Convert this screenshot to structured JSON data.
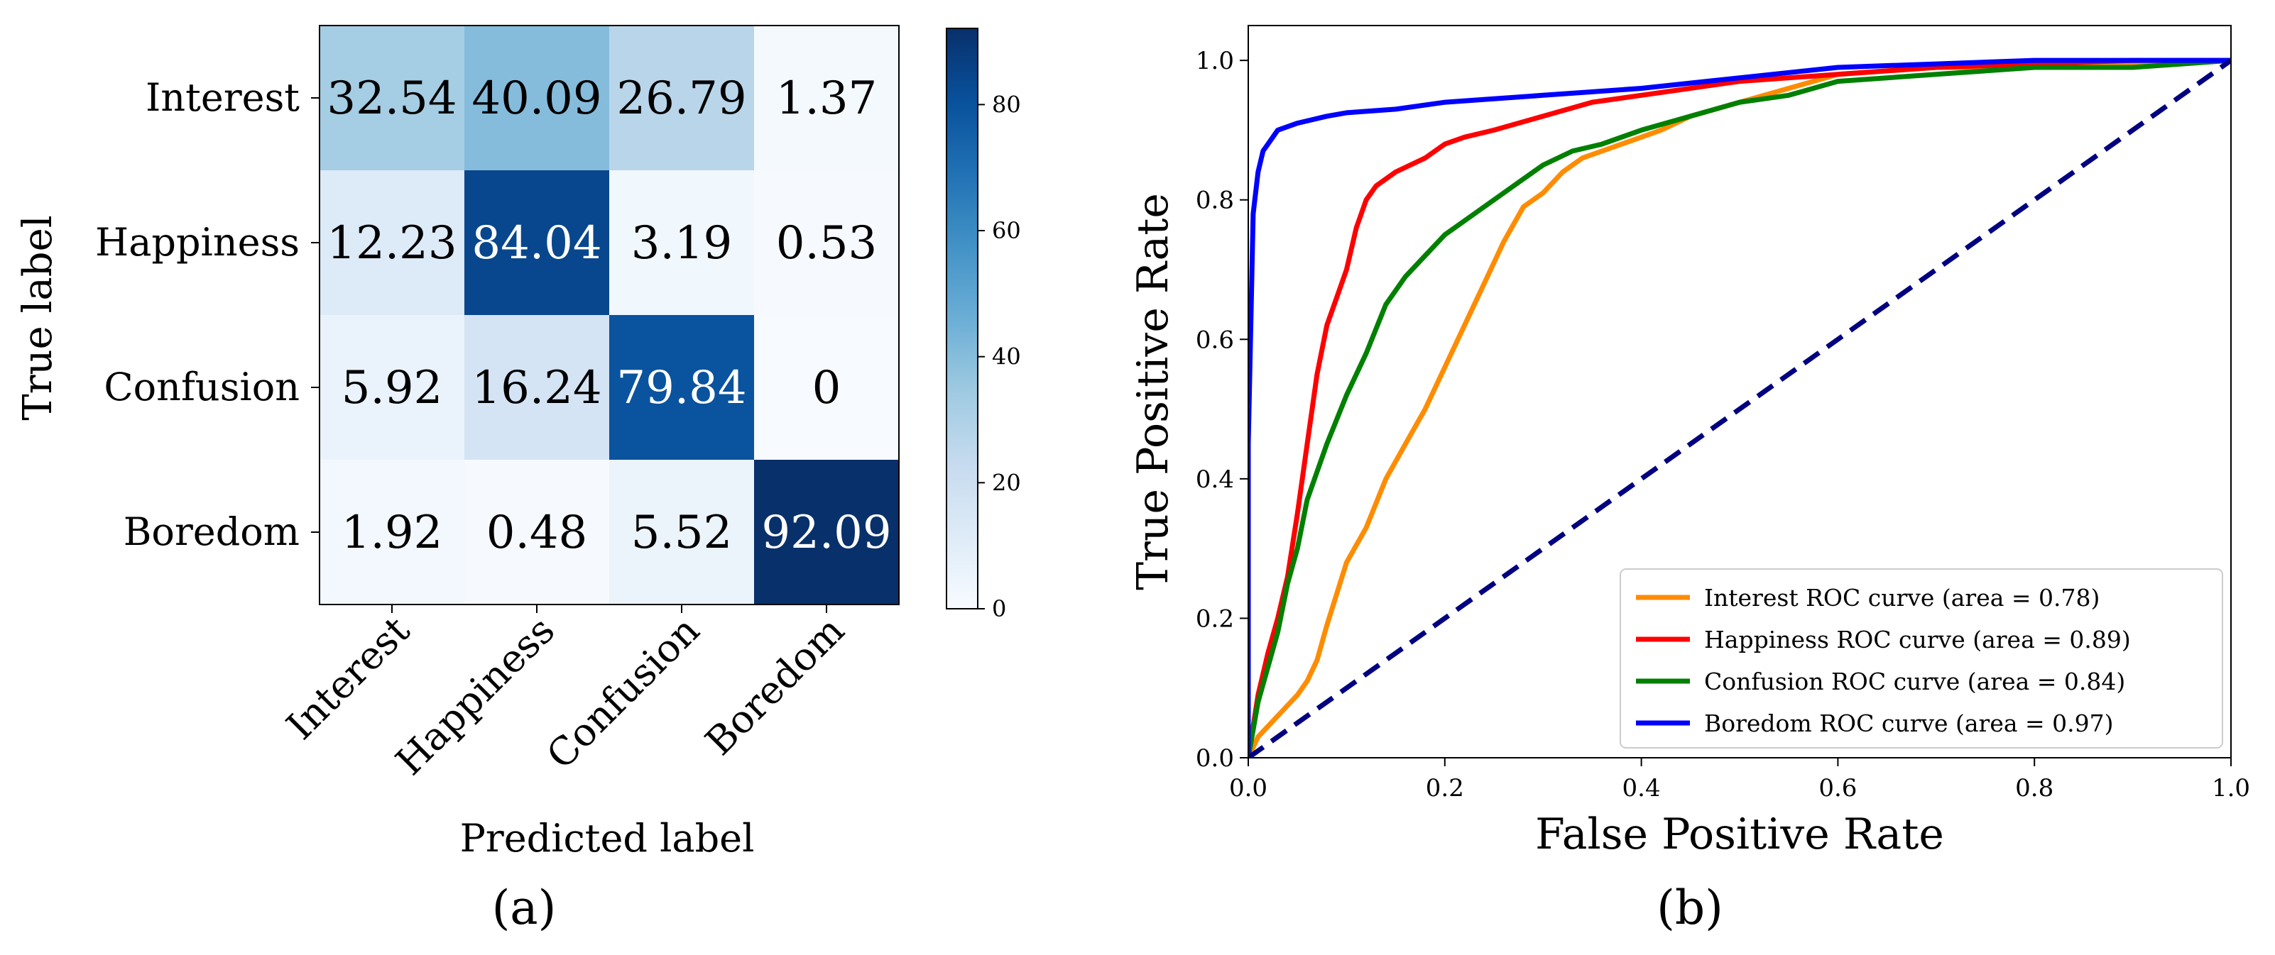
{
  "chart_data": [
    {
      "type": "heatmap",
      "panel_label": "(a)",
      "title": "",
      "xlabel": "Predicted label",
      "ylabel": "True label",
      "x_categories": [
        "Interest",
        "Happiness",
        "Confusion",
        "Boredom"
      ],
      "y_categories": [
        "Interest",
        "Happiness",
        "Confusion",
        "Boredom"
      ],
      "values": [
        [
          32.54,
          40.09,
          26.79,
          1.37
        ],
        [
          12.23,
          84.04,
          3.19,
          0.53
        ],
        [
          5.92,
          16.24,
          79.84,
          0
        ],
        [
          1.92,
          0.48,
          5.52,
          92.09
        ]
      ],
      "value_labels": [
        [
          "32.54",
          "40.09",
          "26.79",
          "1.37"
        ],
        [
          "12.23",
          "84.04",
          "3.19",
          "0.53"
        ],
        [
          "5.92",
          "16.24",
          "79.84",
          "0"
        ],
        [
          "1.92",
          "0.48",
          "5.52",
          "92.09"
        ]
      ],
      "colorbar": {
        "range": [
          0,
          92.09
        ],
        "ticks": [
          0,
          20,
          40,
          60,
          80
        ],
        "tick_labels": [
          "0",
          "20",
          "40",
          "60",
          "80"
        ],
        "colormap": "Blues"
      }
    },
    {
      "type": "line",
      "panel_label": "(b)",
      "title": "",
      "xlabel": "False Positive Rate",
      "ylabel": "True Positive Rate",
      "xlim": [
        0.0,
        1.0
      ],
      "ylim": [
        0.0,
        1.05
      ],
      "x_ticks": [
        0.0,
        0.2,
        0.4,
        0.6,
        0.8,
        1.0
      ],
      "x_tick_labels": [
        "0.0",
        "0.2",
        "0.4",
        "0.6",
        "0.8",
        "1.0"
      ],
      "y_ticks": [
        0.0,
        0.2,
        0.4,
        0.6,
        0.8,
        1.0
      ],
      "y_tick_labels": [
        "0.0",
        "0.2",
        "0.4",
        "0.6",
        "0.8",
        "1.0"
      ],
      "legend_position": "lower-right",
      "series": [
        {
          "name": "Interest ROC curve (area = 0.78)",
          "color": "#ff8c00",
          "x": [
            0,
            0.01,
            0.03,
            0.05,
            0.06,
            0.07,
            0.08,
            0.1,
            0.12,
            0.14,
            0.16,
            0.18,
            0.2,
            0.22,
            0.24,
            0.26,
            0.28,
            0.3,
            0.32,
            0.34,
            0.36,
            0.38,
            0.4,
            0.42,
            0.45,
            0.5,
            0.55,
            0.6,
            0.7,
            0.8,
            0.9,
            0.95,
            1.0
          ],
          "y": [
            0,
            0.03,
            0.06,
            0.09,
            0.11,
            0.14,
            0.19,
            0.28,
            0.33,
            0.4,
            0.45,
            0.5,
            0.56,
            0.62,
            0.68,
            0.74,
            0.79,
            0.81,
            0.84,
            0.86,
            0.87,
            0.88,
            0.89,
            0.9,
            0.92,
            0.94,
            0.96,
            0.98,
            0.99,
            0.99,
            0.995,
            1.0,
            1.0
          ]
        },
        {
          "name": "Happiness ROC curve (area = 0.89)",
          "color": "#ff0000",
          "x": [
            0,
            0.01,
            0.02,
            0.03,
            0.04,
            0.05,
            0.06,
            0.07,
            0.08,
            0.09,
            0.1,
            0.11,
            0.12,
            0.13,
            0.15,
            0.18,
            0.2,
            0.22,
            0.25,
            0.3,
            0.35,
            0.4,
            0.5,
            0.6,
            0.7,
            0.8,
            0.9,
            0.95,
            1.0
          ],
          "y": [
            0,
            0.09,
            0.15,
            0.2,
            0.26,
            0.35,
            0.45,
            0.55,
            0.62,
            0.66,
            0.7,
            0.76,
            0.8,
            0.82,
            0.84,
            0.86,
            0.88,
            0.89,
            0.9,
            0.92,
            0.94,
            0.95,
            0.97,
            0.98,
            0.99,
            0.995,
            1.0,
            1.0,
            1.0
          ]
        },
        {
          "name": "Confusion ROC curve (area = 0.84)",
          "color": "#008000",
          "x": [
            0,
            0.01,
            0.02,
            0.03,
            0.04,
            0.05,
            0.06,
            0.08,
            0.1,
            0.12,
            0.14,
            0.16,
            0.18,
            0.2,
            0.22,
            0.25,
            0.28,
            0.3,
            0.33,
            0.36,
            0.4,
            0.45,
            0.5,
            0.55,
            0.6,
            0.7,
            0.8,
            0.9,
            0.95,
            1.0
          ],
          "y": [
            0,
            0.08,
            0.13,
            0.18,
            0.25,
            0.3,
            0.37,
            0.45,
            0.52,
            0.58,
            0.65,
            0.69,
            0.72,
            0.75,
            0.77,
            0.8,
            0.83,
            0.85,
            0.87,
            0.88,
            0.9,
            0.92,
            0.94,
            0.95,
            0.97,
            0.98,
            0.99,
            0.99,
            0.995,
            1.0
          ]
        },
        {
          "name": "Boredom ROC curve (area = 0.97)",
          "color": "#0000ff",
          "x": [
            0,
            0.0,
            0.005,
            0.01,
            0.015,
            0.02,
            0.025,
            0.03,
            0.05,
            0.08,
            0.1,
            0.15,
            0.2,
            0.3,
            0.4,
            0.5,
            0.6,
            0.7,
            0.8,
            0.9,
            1.0
          ],
          "y": [
            0,
            0.45,
            0.78,
            0.84,
            0.87,
            0.88,
            0.89,
            0.9,
            0.91,
            0.92,
            0.925,
            0.93,
            0.94,
            0.95,
            0.96,
            0.975,
            0.99,
            0.995,
            1.0,
            1.0,
            1.0
          ]
        },
        {
          "name": "",
          "color": "#000080",
          "dashed": true,
          "x": [
            0.0,
            1.0
          ],
          "y": [
            0.0,
            1.0
          ]
        }
      ]
    }
  ]
}
